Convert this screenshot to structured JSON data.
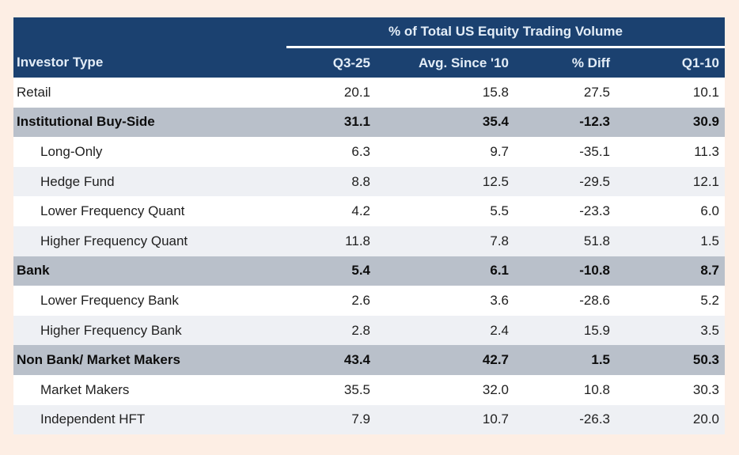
{
  "page": {
    "background_color": "#fdeee4"
  },
  "colors": {
    "header_bg": "#1b4170",
    "header_text": "#e3edf7",
    "header_underline": "#ffffff",
    "section_row_bg": "#b9c0ca",
    "alt_row_bg": "#eef0f4",
    "row_bg": "#ffffff",
    "data_text": "#1f1f1f"
  },
  "chart_data": {
    "type": "table",
    "title": "% of Total US Equity Trading Volume",
    "columns": [
      "Investor Type",
      "Q3-25",
      "Avg. Since '10",
      "% Diff",
      "Q1-10"
    ],
    "rows": [
      {
        "label": "Retail",
        "level": "top",
        "values": [
          "20.1",
          "15.8",
          "27.5",
          "10.1"
        ]
      },
      {
        "label": "Institutional Buy-Side",
        "level": "section",
        "values": [
          "31.1",
          "35.4",
          "-12.3",
          "30.9"
        ]
      },
      {
        "label": "Long-Only",
        "level": "sub",
        "values": [
          "6.3",
          "9.7",
          "-35.1",
          "11.3"
        ]
      },
      {
        "label": "Hedge Fund",
        "level": "sub",
        "values": [
          "8.8",
          "12.5",
          "-29.5",
          "12.1"
        ]
      },
      {
        "label": "Lower Frequency Quant",
        "level": "sub",
        "values": [
          "4.2",
          "5.5",
          "-23.3",
          "6.0"
        ]
      },
      {
        "label": "Higher Frequency Quant",
        "level": "sub",
        "values": [
          "11.8",
          "7.8",
          "51.8",
          "1.5"
        ]
      },
      {
        "label": "Bank",
        "level": "section",
        "values": [
          "5.4",
          "6.1",
          "-10.8",
          "8.7"
        ]
      },
      {
        "label": "Lower Frequency Bank",
        "level": "sub",
        "values": [
          "2.6",
          "3.6",
          "-28.6",
          "5.2"
        ]
      },
      {
        "label": "Higher Frequency Bank",
        "level": "sub",
        "values": [
          "2.8",
          "2.4",
          "15.9",
          "3.5"
        ]
      },
      {
        "label": "Non Bank/ Market Makers",
        "level": "section",
        "values": [
          "43.4",
          "42.7",
          "1.5",
          "50.3"
        ]
      },
      {
        "label": "Market Makers",
        "level": "sub",
        "values": [
          "35.5",
          "32.0",
          "10.8",
          "30.3"
        ]
      },
      {
        "label": "Independent HFT",
        "level": "sub",
        "values": [
          "7.9",
          "10.7",
          "-26.3",
          "20.0"
        ]
      }
    ]
  }
}
